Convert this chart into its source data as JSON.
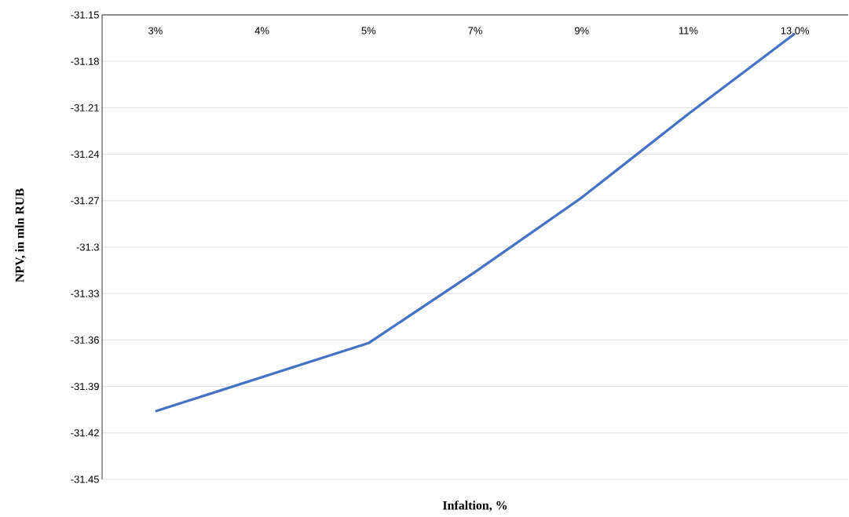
{
  "chart_data": {
    "type": "line",
    "xlabel": "Infaltion, %",
    "ylabel": "NPV, in mln RUB",
    "categories": [
      "3%",
      "4%",
      "5%",
      "7%",
      "9%",
      "11%",
      "13.0%"
    ],
    "series": [
      {
        "color": "#4472c4",
        "values": [
          -31.406,
          -31.384,
          -31.362,
          -31.316,
          -31.268,
          -31.214,
          -31.162
        ]
      }
    ],
    "ylim": [
      -31.45,
      -31.15
    ],
    "yticks": [
      -31.45,
      -31.42,
      -31.39,
      -31.36,
      -31.33,
      -31.3,
      -31.27,
      -31.24,
      -31.21,
      -31.18,
      -31.15
    ],
    "grid": "y"
  }
}
